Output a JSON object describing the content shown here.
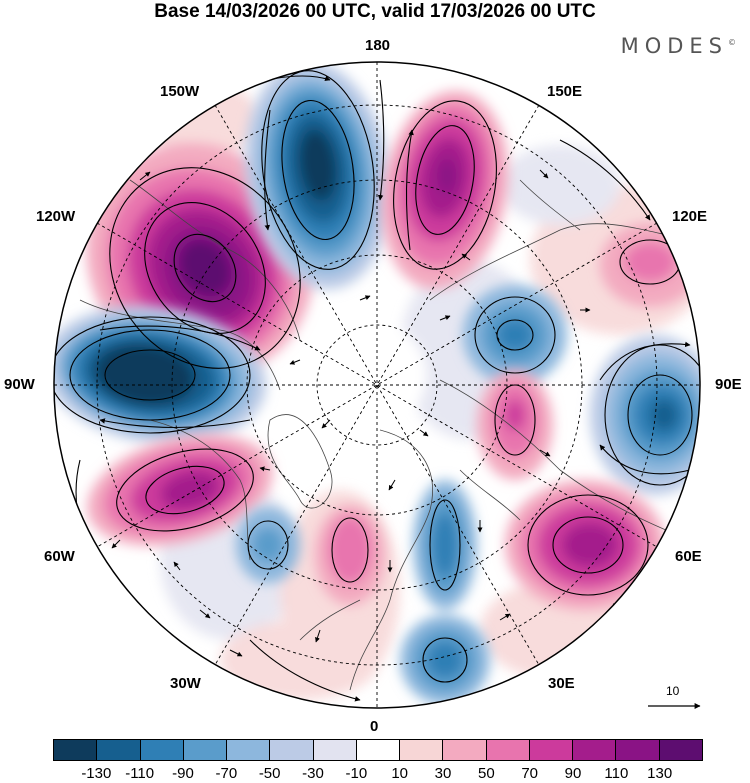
{
  "title": "Base 14/03/2026 00 UTC, valid 17/03/2026 00 UTC",
  "brand": "MODES",
  "brand_mark": "©",
  "longitude_labels": {
    "top": "180",
    "bottom": "0",
    "left": "90W",
    "right": "90E",
    "upper_left": "150W",
    "upper_right": "150E",
    "mid_upper_left": "120W",
    "mid_upper_right": "120E",
    "mid_lower_left": "60W",
    "mid_lower_right": "60E",
    "lower_left": "30W",
    "lower_right": "30E"
  },
  "reference_vector": {
    "label": "10"
  },
  "colorbar": {
    "ticks": [
      "-130",
      "-110",
      "-90",
      "-70",
      "-50",
      "-30",
      "-10",
      "10",
      "30",
      "50",
      "70",
      "90",
      "110",
      "130"
    ],
    "colors": [
      "#0e3b5c",
      "#165f8f",
      "#2f7fb5",
      "#5a9ccb",
      "#8db7dd",
      "#bccbe6",
      "#e2e3f0",
      "#ffffff",
      "#f7d6d6",
      "#f3aac0",
      "#e874ae",
      "#cc3a9c",
      "#a41d8c",
      "#8a1385",
      "#5d0d70"
    ]
  },
  "colors": {
    "background": "#ffffff",
    "coast": "#444444",
    "grid": "#000000"
  }
}
